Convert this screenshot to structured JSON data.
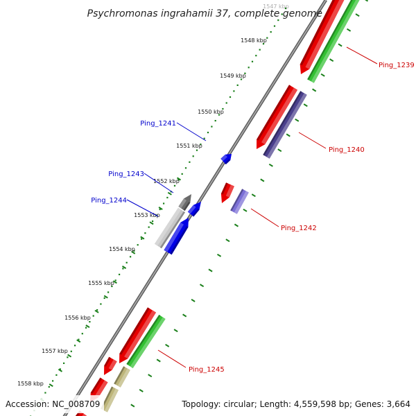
{
  "title": "Psychromonas ingrahamii 37, complete genome",
  "footer": {
    "accession": "Accession: NC_008709",
    "topology": "Topology: circular; Length: 4,559,598 bp; Genes: 3,664"
  },
  "ruler_ticks": [
    {
      "label": "1547 kbp",
      "faded": true
    },
    {
      "label": "1548 kbp"
    },
    {
      "label": "1549 kbp"
    },
    {
      "label": "1550 kbp"
    },
    {
      "label": "1551 kbp"
    },
    {
      "label": "1552 kbp"
    },
    {
      "label": "1553 kbp"
    },
    {
      "label": "1554 kbp"
    },
    {
      "label": "1555 kbp"
    },
    {
      "label": "1556 kbp"
    },
    {
      "label": "1557 kbp"
    },
    {
      "label": "1558 kbp"
    }
  ],
  "gene_labels": [
    {
      "text": "Ping_1239",
      "color": "#cc0000"
    },
    {
      "text": "Ping_1240",
      "color": "#cc0000"
    },
    {
      "text": "Ping_1241",
      "color": "#0000cc"
    },
    {
      "text": "Ping_1242",
      "color": "#cc0000"
    },
    {
      "text": "Ping_1243",
      "color": "#0000cc"
    },
    {
      "text": "Ping_1244",
      "color": "#0000cc"
    },
    {
      "text": "Ping_1245",
      "color": "#cc0000"
    }
  ],
  "colors": {
    "cds_forward": "#e60000",
    "cds_reverse": "#0000e6",
    "rna_green": "#33c033",
    "purple": "#4a3f8c",
    "light_purple": "#7b6fd6",
    "gray_dark": "#6a6a6a",
    "gray_light": "#c8c8c8",
    "khaki": "#bdb57a",
    "backbone": "#888888",
    "ruler": "#1a7f1a"
  }
}
